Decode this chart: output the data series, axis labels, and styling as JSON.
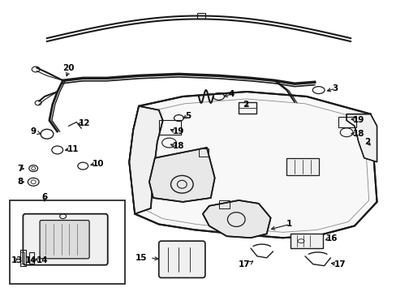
{
  "background_color": "#ffffff",
  "line_color": "#1a1a1a",
  "text_color": "#000000",
  "figure_width": 4.89,
  "figure_height": 3.6,
  "dpi": 100
}
